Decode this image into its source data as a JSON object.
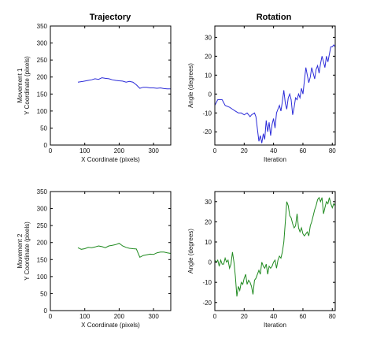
{
  "column_titles": [
    "Trajectory",
    "Rotation"
  ],
  "chart_data": [
    {
      "type": "line",
      "xlabel": "X Coordinate (pixels)",
      "ylabel": [
        "Movement 1",
        "Y Coordinate (pixels)"
      ],
      "xlim": [
        0,
        350
      ],
      "ylim": [
        0,
        350
      ],
      "xticks": [
        0,
        100,
        200,
        300
      ],
      "yticks": [
        0,
        50,
        100,
        150,
        200,
        250,
        300,
        350
      ],
      "color": "#2a2ad8",
      "series": [
        {
          "x": [
            80,
            95,
            110,
            120,
            130,
            140,
            150,
            160,
            170,
            180,
            190,
            200,
            210,
            220,
            230,
            240,
            250,
            260,
            270,
            280,
            290,
            300,
            310,
            320,
            330,
            340,
            350
          ],
          "y": [
            185,
            187,
            190,
            192,
            195,
            193,
            198,
            196,
            195,
            192,
            190,
            189,
            188,
            185,
            187,
            185,
            177,
            167,
            170,
            170,
            168,
            168,
            167,
            168,
            166,
            165,
            165
          ]
        }
      ]
    },
    {
      "type": "line",
      "xlabel": "Iteration",
      "ylabel": [
        "Angle (degrees)"
      ],
      "xlim": [
        0,
        82
      ],
      "ylim": [
        -27,
        36
      ],
      "xticks": [
        0,
        20,
        40,
        60,
        80
      ],
      "yticks": [
        -20,
        -10,
        0,
        10,
        20,
        30
      ],
      "color": "#2a2ad8",
      "series": [
        {
          "x": [
            0,
            2,
            4,
            5,
            7,
            10,
            12,
            14,
            16,
            18,
            20,
            22,
            24,
            25,
            27,
            28,
            30,
            31,
            32,
            33,
            34,
            35,
            36,
            37,
            38,
            39,
            40,
            41,
            42,
            43,
            44,
            45,
            46,
            47,
            48,
            49,
            50,
            51,
            52,
            53,
            54,
            55,
            56,
            57,
            58,
            59,
            60,
            61,
            62,
            63,
            64,
            65,
            66,
            67,
            68,
            69,
            70,
            71,
            72,
            73,
            74,
            75,
            76,
            77,
            78,
            79,
            80,
            81,
            82
          ],
          "y": [
            -6,
            -3,
            -3,
            -3,
            -6,
            -7,
            -8,
            -9,
            -10,
            -10,
            -11,
            -10,
            -12,
            -11,
            -10,
            -12,
            -25,
            -22,
            -26,
            -21,
            -24,
            -14,
            -20,
            -15,
            -22,
            -16,
            -13,
            -18,
            -10,
            -8,
            -6,
            -9,
            -4,
            2,
            -5,
            -8,
            -2,
            0,
            -3,
            -11,
            -7,
            -2,
            -3,
            0,
            -2,
            3,
            0,
            7,
            14,
            10,
            6,
            9,
            14,
            11,
            8,
            13,
            15,
            11,
            16,
            20,
            17,
            14,
            20,
            17,
            21,
            25,
            25,
            26,
            25
          ]
        }
      ]
    },
    {
      "type": "line",
      "xlabel": "X Coordinate (pixels)",
      "ylabel": [
        "Movement 2",
        "Y Coordinate (pixels)"
      ],
      "xlim": [
        0,
        350
      ],
      "ylim": [
        0,
        350
      ],
      "xticks": [
        0,
        100,
        200,
        300
      ],
      "yticks": [
        0,
        50,
        100,
        150,
        200,
        250,
        300,
        350
      ],
      "color": "#1f8a1f",
      "series": [
        {
          "x": [
            80,
            90,
            100,
            110,
            120,
            130,
            140,
            150,
            160,
            170,
            180,
            190,
            200,
            210,
            220,
            230,
            240,
            250,
            260,
            270,
            280,
            290,
            300,
            310,
            320,
            330,
            340,
            350
          ],
          "y": [
            185,
            180,
            182,
            186,
            185,
            187,
            190,
            188,
            185,
            190,
            192,
            194,
            198,
            190,
            186,
            183,
            182,
            181,
            157,
            162,
            164,
            166,
            165,
            170,
            172,
            172,
            170,
            168
          ]
        }
      ]
    },
    {
      "type": "line",
      "xlabel": "Iteration",
      "ylabel": [
        "Angle (degrees)"
      ],
      "xlim": [
        0,
        82
      ],
      "ylim": [
        -24,
        35
      ],
      "xticks": [
        0,
        20,
        40,
        60,
        80
      ],
      "yticks": [
        -20,
        -10,
        0,
        10,
        20,
        30
      ],
      "color": "#1f8a1f",
      "series": [
        {
          "x": [
            0,
            1,
            2,
            3,
            4,
            5,
            6,
            7,
            8,
            9,
            10,
            11,
            12,
            13,
            14,
            15,
            16,
            17,
            18,
            19,
            20,
            21,
            22,
            23,
            24,
            25,
            26,
            27,
            28,
            29,
            30,
            31,
            32,
            33,
            34,
            35,
            36,
            37,
            38,
            39,
            40,
            41,
            42,
            43,
            44,
            45,
            46,
            47,
            48,
            49,
            50,
            51,
            52,
            53,
            54,
            55,
            56,
            57,
            58,
            59,
            60,
            61,
            62,
            63,
            64,
            65,
            66,
            67,
            68,
            69,
            70,
            71,
            72,
            73,
            74,
            75,
            76,
            77,
            78,
            79,
            80,
            81,
            82
          ],
          "y": [
            1,
            0,
            1,
            -2,
            1,
            -1,
            -1,
            2,
            0,
            1,
            -3,
            -1,
            5,
            0,
            -7,
            -17,
            -12,
            -14,
            -10,
            -11,
            -8,
            -6,
            -11,
            -9,
            -10,
            -12,
            -16,
            -9,
            -8,
            -6,
            -4,
            -6,
            0,
            -2,
            -3,
            -1,
            -6,
            -2,
            -3,
            -2,
            0,
            1,
            -3,
            1,
            3,
            2,
            5,
            10,
            20,
            30,
            28,
            23,
            22,
            19,
            17,
            18,
            24,
            17,
            15,
            17,
            14,
            13,
            14,
            15,
            13,
            18,
            20,
            23,
            26,
            28,
            31,
            32,
            30,
            32,
            24,
            27,
            30,
            29,
            32,
            29,
            27,
            29,
            28
          ]
        }
      ]
    }
  ]
}
